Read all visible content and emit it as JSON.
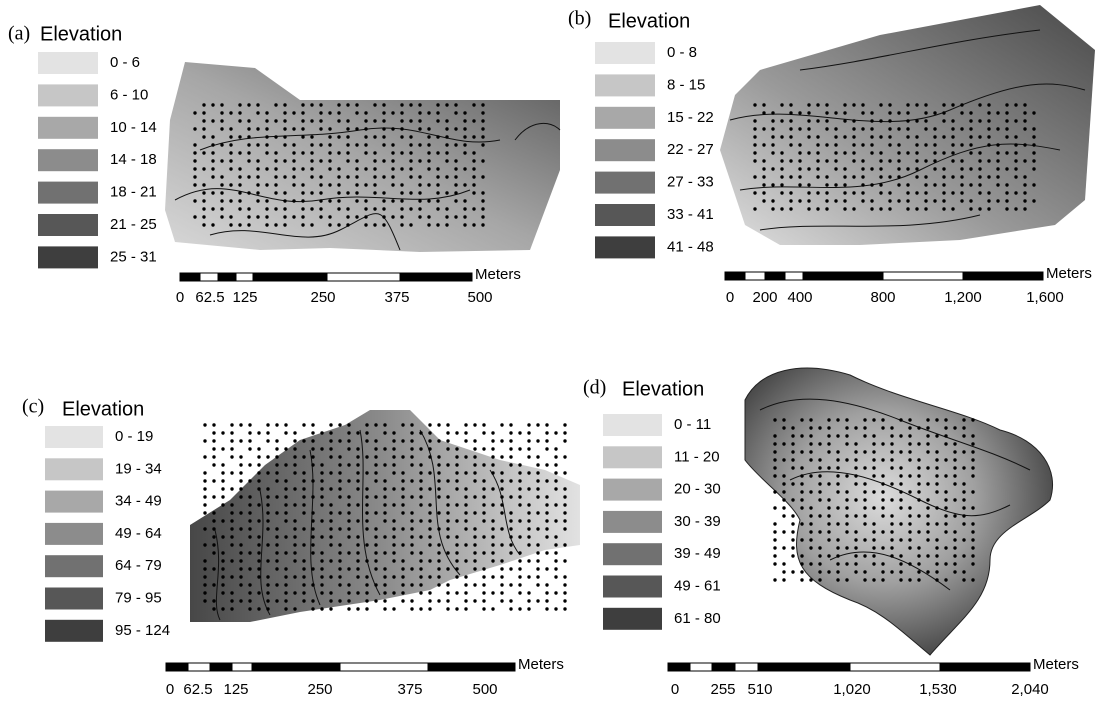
{
  "panels": [
    {
      "label": "(a)",
      "legend_title": "Elevation",
      "legend": [
        "0 - 6",
        "6 - 10",
        "10 - 14",
        "14 - 18",
        "18 - 21",
        "21 - 25",
        "25 - 31"
      ],
      "scale_unit": "Meters",
      "scale_labels": [
        "0",
        "62.5",
        "125",
        "250",
        "375",
        "500"
      ]
    },
    {
      "label": "(b)",
      "legend_title": "Elevation",
      "legend": [
        "0 - 8",
        "8 - 15",
        "15 - 22",
        "22 - 27",
        "27 - 33",
        "33 - 41",
        "41 - 48"
      ],
      "scale_unit": "Meters",
      "scale_labels": [
        "0",
        "200",
        "400",
        "800",
        "1,200",
        "1,600"
      ]
    },
    {
      "label": "(c)",
      "legend_title": "Elevation",
      "legend": [
        "0 - 19",
        "19 - 34",
        "34 - 49",
        "49 - 64",
        "64 - 79",
        "79 - 95",
        "95 - 124"
      ],
      "scale_unit": "Meters",
      "scale_labels": [
        "0",
        "62.5",
        "125",
        "250",
        "375",
        "500"
      ]
    },
    {
      "label": "(d)",
      "legend_title": "Elevation",
      "legend": [
        "0 - 11",
        "11 - 20",
        "20 - 30",
        "30 - 39",
        "39 - 49",
        "49 - 61",
        "61 - 80"
      ],
      "scale_unit": "Meters",
      "scale_labels": [
        "0",
        "255",
        "510",
        "1,020",
        "1,530",
        "2,040"
      ]
    }
  ]
}
